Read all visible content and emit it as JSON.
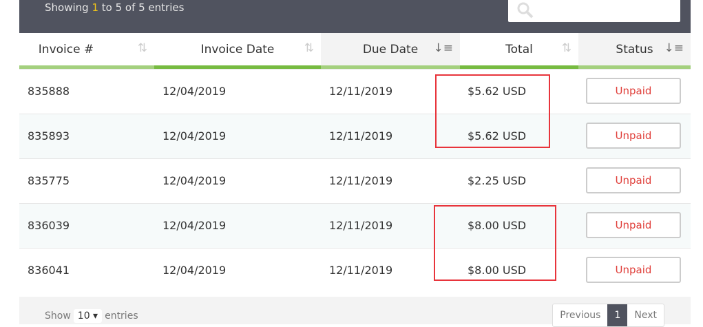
{
  "info": {
    "prefix": "Showing ",
    "start": "1",
    "mid": " to 5 of 5 entries"
  },
  "search": {
    "placeholder": ""
  },
  "columns": [
    {
      "label": "Invoice #",
      "sort": "none"
    },
    {
      "label": "Invoice Date",
      "sort": "none"
    },
    {
      "label": "Due Date",
      "sort": "active"
    },
    {
      "label": "Total",
      "sort": "none"
    },
    {
      "label": "Status",
      "sort": "active"
    }
  ],
  "rows": [
    {
      "invoice": "835888",
      "date": "12/04/2019",
      "due": "12/11/2019",
      "total": "$5.62 USD",
      "status": "Unpaid"
    },
    {
      "invoice": "835893",
      "date": "12/04/2019",
      "due": "12/11/2019",
      "total": "$5.62 USD",
      "status": "Unpaid"
    },
    {
      "invoice": "835775",
      "date": "12/04/2019",
      "due": "12/11/2019",
      "total": "$2.25 USD",
      "status": "Unpaid"
    },
    {
      "invoice": "836039",
      "date": "12/04/2019",
      "due": "12/11/2019",
      "total": "$8.00 USD",
      "status": "Unpaid"
    },
    {
      "invoice": "836041",
      "date": "12/04/2019",
      "due": "12/11/2019",
      "total": "$8.00 USD",
      "status": "Unpaid"
    }
  ],
  "footer": {
    "show": "Show",
    "length": "10 ▾",
    "entries": "entries",
    "previous": "Previous",
    "page": "1",
    "next": "Next"
  },
  "colors": {
    "header": "#50535f",
    "accent": "#77bb41",
    "status": "#e0403b",
    "highlight": "#e8343b"
  }
}
